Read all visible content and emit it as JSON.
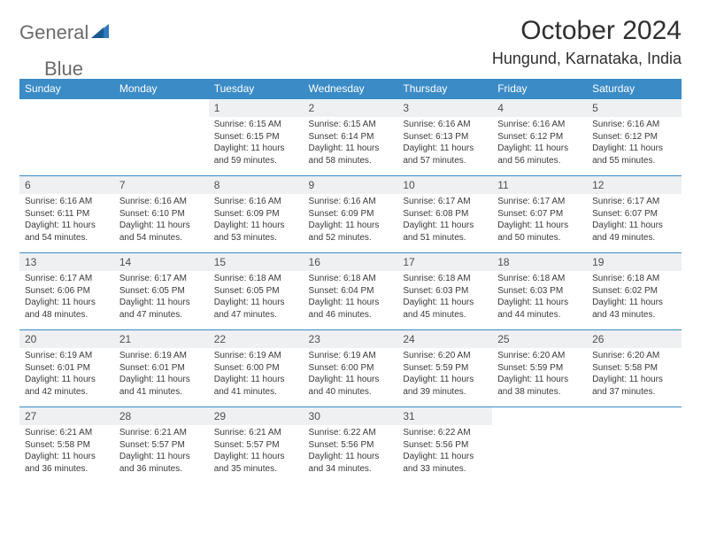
{
  "logo": {
    "word1": "General",
    "word2": "Blue"
  },
  "title": "October 2024",
  "location": "Hungund, Karnataka, India",
  "colors": {
    "header_bg": "#3b8bc6",
    "header_text": "#ffffff",
    "numrow_bg": "#eef0f2",
    "text": "#3a3a3a",
    "logo_accent": "#2f7abf"
  },
  "day_headers": [
    "Sunday",
    "Monday",
    "Tuesday",
    "Wednesday",
    "Thursday",
    "Friday",
    "Saturday"
  ],
  "weeks": [
    {
      "days": [
        null,
        null,
        {
          "n": "1",
          "sr": "6:15 AM",
          "ss": "6:15 PM",
          "dl": "11 hours and 59 minutes."
        },
        {
          "n": "2",
          "sr": "6:15 AM",
          "ss": "6:14 PM",
          "dl": "11 hours and 58 minutes."
        },
        {
          "n": "3",
          "sr": "6:16 AM",
          "ss": "6:13 PM",
          "dl": "11 hours and 57 minutes."
        },
        {
          "n": "4",
          "sr": "6:16 AM",
          "ss": "6:12 PM",
          "dl": "11 hours and 56 minutes."
        },
        {
          "n": "5",
          "sr": "6:16 AM",
          "ss": "6:12 PM",
          "dl": "11 hours and 55 minutes."
        }
      ]
    },
    {
      "days": [
        {
          "n": "6",
          "sr": "6:16 AM",
          "ss": "6:11 PM",
          "dl": "11 hours and 54 minutes."
        },
        {
          "n": "7",
          "sr": "6:16 AM",
          "ss": "6:10 PM",
          "dl": "11 hours and 54 minutes."
        },
        {
          "n": "8",
          "sr": "6:16 AM",
          "ss": "6:09 PM",
          "dl": "11 hours and 53 minutes."
        },
        {
          "n": "9",
          "sr": "6:16 AM",
          "ss": "6:09 PM",
          "dl": "11 hours and 52 minutes."
        },
        {
          "n": "10",
          "sr": "6:17 AM",
          "ss": "6:08 PM",
          "dl": "11 hours and 51 minutes."
        },
        {
          "n": "11",
          "sr": "6:17 AM",
          "ss": "6:07 PM",
          "dl": "11 hours and 50 minutes."
        },
        {
          "n": "12",
          "sr": "6:17 AM",
          "ss": "6:07 PM",
          "dl": "11 hours and 49 minutes."
        }
      ]
    },
    {
      "days": [
        {
          "n": "13",
          "sr": "6:17 AM",
          "ss": "6:06 PM",
          "dl": "11 hours and 48 minutes."
        },
        {
          "n": "14",
          "sr": "6:17 AM",
          "ss": "6:05 PM",
          "dl": "11 hours and 47 minutes."
        },
        {
          "n": "15",
          "sr": "6:18 AM",
          "ss": "6:05 PM",
          "dl": "11 hours and 47 minutes."
        },
        {
          "n": "16",
          "sr": "6:18 AM",
          "ss": "6:04 PM",
          "dl": "11 hours and 46 minutes."
        },
        {
          "n": "17",
          "sr": "6:18 AM",
          "ss": "6:03 PM",
          "dl": "11 hours and 45 minutes."
        },
        {
          "n": "18",
          "sr": "6:18 AM",
          "ss": "6:03 PM",
          "dl": "11 hours and 44 minutes."
        },
        {
          "n": "19",
          "sr": "6:18 AM",
          "ss": "6:02 PM",
          "dl": "11 hours and 43 minutes."
        }
      ]
    },
    {
      "days": [
        {
          "n": "20",
          "sr": "6:19 AM",
          "ss": "6:01 PM",
          "dl": "11 hours and 42 minutes."
        },
        {
          "n": "21",
          "sr": "6:19 AM",
          "ss": "6:01 PM",
          "dl": "11 hours and 41 minutes."
        },
        {
          "n": "22",
          "sr": "6:19 AM",
          "ss": "6:00 PM",
          "dl": "11 hours and 41 minutes."
        },
        {
          "n": "23",
          "sr": "6:19 AM",
          "ss": "6:00 PM",
          "dl": "11 hours and 40 minutes."
        },
        {
          "n": "24",
          "sr": "6:20 AM",
          "ss": "5:59 PM",
          "dl": "11 hours and 39 minutes."
        },
        {
          "n": "25",
          "sr": "6:20 AM",
          "ss": "5:59 PM",
          "dl": "11 hours and 38 minutes."
        },
        {
          "n": "26",
          "sr": "6:20 AM",
          "ss": "5:58 PM",
          "dl": "11 hours and 37 minutes."
        }
      ]
    },
    {
      "days": [
        {
          "n": "27",
          "sr": "6:21 AM",
          "ss": "5:58 PM",
          "dl": "11 hours and 36 minutes."
        },
        {
          "n": "28",
          "sr": "6:21 AM",
          "ss": "5:57 PM",
          "dl": "11 hours and 36 minutes."
        },
        {
          "n": "29",
          "sr": "6:21 AM",
          "ss": "5:57 PM",
          "dl": "11 hours and 35 minutes."
        },
        {
          "n": "30",
          "sr": "6:22 AM",
          "ss": "5:56 PM",
          "dl": "11 hours and 34 minutes."
        },
        {
          "n": "31",
          "sr": "6:22 AM",
          "ss": "5:56 PM",
          "dl": "11 hours and 33 minutes."
        },
        null,
        null
      ]
    }
  ],
  "labels": {
    "sunrise": "Sunrise:",
    "sunset": "Sunset:",
    "daylight": "Daylight:"
  }
}
